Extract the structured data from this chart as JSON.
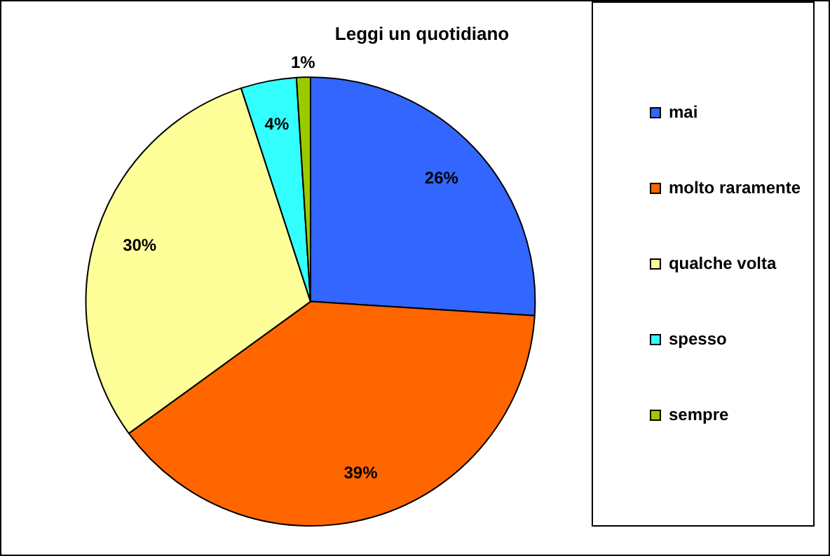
{
  "chart_data": {
    "type": "pie",
    "title": "Leggi un quotidiano",
    "categories": [
      "mai",
      "molto raramente",
      "qualche volta",
      "spesso",
      "sempre"
    ],
    "values": [
      26,
      39,
      30,
      4,
      1
    ],
    "colors": [
      "#3366ff",
      "#ff6600",
      "#ffff99",
      "#33ffff",
      "#99cc00"
    ],
    "value_labels": [
      "26%",
      "39%",
      "30%",
      "4%",
      "1%"
    ],
    "legend": "right"
  }
}
